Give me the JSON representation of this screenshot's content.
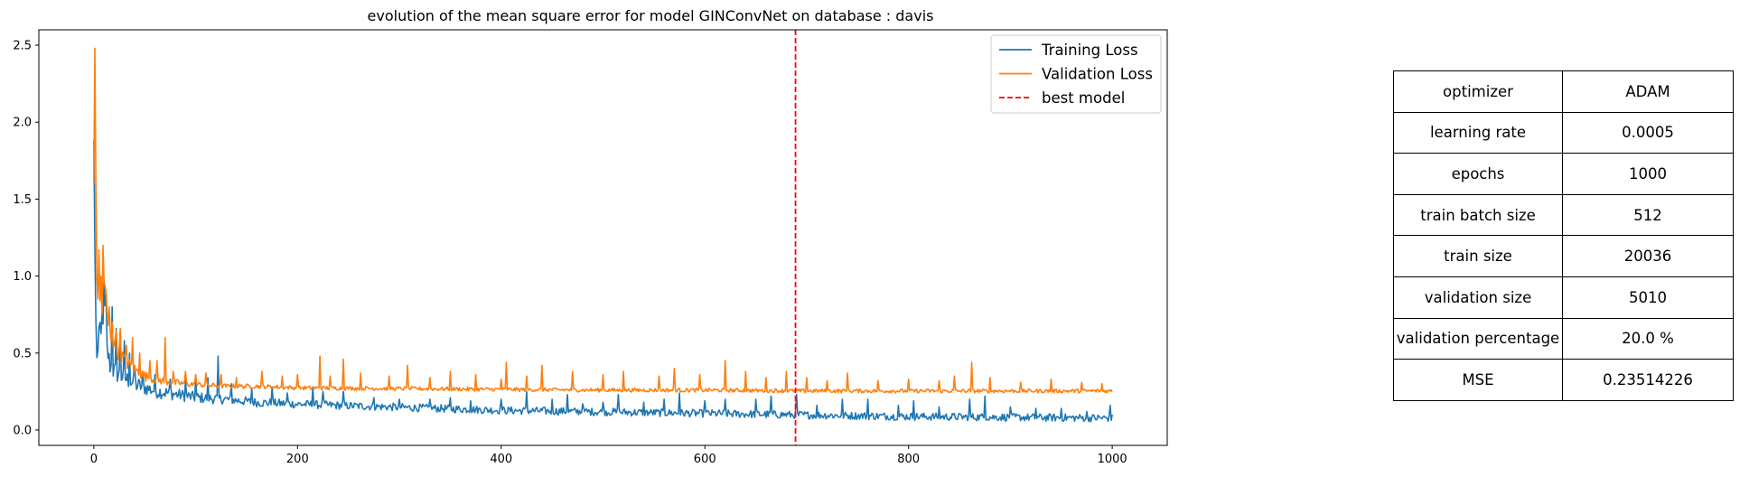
{
  "chart_data": {
    "type": "line",
    "title": "evolution of the mean square error for model GINConvNet on database : davis",
    "xlabel": "",
    "ylabel": "",
    "xlim": [
      -54,
      1054
    ],
    "ylim": [
      -0.1,
      2.6
    ],
    "xticks": [
      0,
      200,
      400,
      600,
      800,
      1000
    ],
    "yticks": [
      0.0,
      0.5,
      1.0,
      1.5,
      2.0,
      2.5
    ],
    "grid": false,
    "legend_position": "top-right",
    "series": [
      {
        "name": "Training Loss",
        "color": "#1f77b4",
        "keypoints": [
          [
            0,
            1.88
          ],
          [
            1,
            1.2
          ],
          [
            2,
            0.72
          ],
          [
            3,
            0.42
          ],
          [
            5,
            0.62
          ],
          [
            8,
            0.55
          ],
          [
            10,
            0.88
          ],
          [
            13,
            0.5
          ],
          [
            16,
            0.4
          ],
          [
            20,
            0.36
          ],
          [
            25,
            0.34
          ],
          [
            30,
            0.32
          ],
          [
            40,
            0.28
          ],
          [
            50,
            0.26
          ],
          [
            60,
            0.24
          ],
          [
            80,
            0.22
          ],
          [
            100,
            0.2
          ],
          [
            130,
            0.19
          ],
          [
            160,
            0.17
          ],
          [
            200,
            0.16
          ],
          [
            250,
            0.15
          ],
          [
            300,
            0.14
          ],
          [
            400,
            0.12
          ],
          [
            500,
            0.11
          ],
          [
            600,
            0.1
          ],
          [
            700,
            0.09
          ],
          [
            800,
            0.08
          ],
          [
            900,
            0.075
          ],
          [
            1000,
            0.07
          ]
        ],
        "spikes": [
          [
            8,
            0.75
          ],
          [
            12,
            0.88
          ],
          [
            18,
            0.8
          ],
          [
            22,
            0.66
          ],
          [
            26,
            0.65
          ],
          [
            30,
            0.58
          ],
          [
            35,
            0.5
          ],
          [
            40,
            0.42
          ],
          [
            48,
            0.38
          ],
          [
            60,
            0.36
          ],
          [
            75,
            0.33
          ],
          [
            90,
            0.33
          ],
          [
            100,
            0.35
          ],
          [
            112,
            0.34
          ],
          [
            122,
            0.48
          ],
          [
            135,
            0.3
          ],
          [
            155,
            0.27
          ],
          [
            175,
            0.28
          ],
          [
            190,
            0.24
          ],
          [
            215,
            0.28
          ],
          [
            225,
            0.25
          ],
          [
            245,
            0.25
          ],
          [
            275,
            0.21
          ],
          [
            300,
            0.2
          ],
          [
            330,
            0.2
          ],
          [
            350,
            0.21
          ],
          [
            370,
            0.19
          ],
          [
            400,
            0.2
          ],
          [
            425,
            0.25
          ],
          [
            450,
            0.2
          ],
          [
            465,
            0.23
          ],
          [
            480,
            0.17
          ],
          [
            500,
            0.18
          ],
          [
            515,
            0.23
          ],
          [
            540,
            0.18
          ],
          [
            560,
            0.2
          ],
          [
            575,
            0.24
          ],
          [
            600,
            0.19
          ],
          [
            620,
            0.2
          ],
          [
            650,
            0.2
          ],
          [
            665,
            0.22
          ],
          [
            690,
            0.23
          ],
          [
            710,
            0.16
          ],
          [
            735,
            0.2
          ],
          [
            760,
            0.2
          ],
          [
            790,
            0.16
          ],
          [
            805,
            0.19
          ],
          [
            830,
            0.15
          ],
          [
            860,
            0.2
          ],
          [
            875,
            0.22
          ],
          [
            900,
            0.15
          ],
          [
            925,
            0.14
          ],
          [
            950,
            0.14
          ],
          [
            975,
            0.12
          ],
          [
            998,
            0.16
          ]
        ]
      },
      {
        "name": "Validation Loss",
        "color": "#ff7f0e",
        "keypoints": [
          [
            0,
            1.6
          ],
          [
            1,
            2.48
          ],
          [
            2,
            1.6
          ],
          [
            3,
            0.95
          ],
          [
            5,
            0.8
          ],
          [
            8,
            0.72
          ],
          [
            10,
            0.95
          ],
          [
            13,
            0.7
          ],
          [
            16,
            0.6
          ],
          [
            20,
            0.55
          ],
          [
            25,
            0.48
          ],
          [
            30,
            0.44
          ],
          [
            40,
            0.38
          ],
          [
            50,
            0.34
          ],
          [
            60,
            0.32
          ],
          [
            80,
            0.3
          ],
          [
            100,
            0.29
          ],
          [
            130,
            0.28
          ],
          [
            160,
            0.28
          ],
          [
            200,
            0.27
          ],
          [
            300,
            0.265
          ],
          [
            400,
            0.26
          ],
          [
            500,
            0.255
          ],
          [
            600,
            0.255
          ],
          [
            700,
            0.25
          ],
          [
            800,
            0.25
          ],
          [
            900,
            0.25
          ],
          [
            1000,
            0.25
          ]
        ],
        "spikes": [
          [
            5,
            1.17
          ],
          [
            7,
            1.0
          ],
          [
            9,
            1.2
          ],
          [
            12,
            0.9
          ],
          [
            15,
            0.8
          ],
          [
            18,
            0.7
          ],
          [
            22,
            0.65
          ],
          [
            26,
            0.66
          ],
          [
            32,
            0.55
          ],
          [
            38,
            0.6
          ],
          [
            45,
            0.5
          ],
          [
            55,
            0.45
          ],
          [
            62,
            0.45
          ],
          [
            70,
            0.6
          ],
          [
            78,
            0.38
          ],
          [
            90,
            0.38
          ],
          [
            100,
            0.36
          ],
          [
            110,
            0.37
          ],
          [
            125,
            0.36
          ],
          [
            140,
            0.34
          ],
          [
            165,
            0.38
          ],
          [
            185,
            0.35
          ],
          [
            200,
            0.36
          ],
          [
            222,
            0.48
          ],
          [
            232,
            0.35
          ],
          [
            245,
            0.46
          ],
          [
            262,
            0.37
          ],
          [
            290,
            0.35
          ],
          [
            308,
            0.42
          ],
          [
            330,
            0.34
          ],
          [
            350,
            0.38
          ],
          [
            375,
            0.36
          ],
          [
            400,
            0.33
          ],
          [
            405,
            0.44
          ],
          [
            425,
            0.35
          ],
          [
            440,
            0.42
          ],
          [
            470,
            0.38
          ],
          [
            500,
            0.36
          ],
          [
            520,
            0.38
          ],
          [
            555,
            0.35
          ],
          [
            570,
            0.4
          ],
          [
            595,
            0.36
          ],
          [
            620,
            0.45
          ],
          [
            640,
            0.38
          ],
          [
            660,
            0.34
          ],
          [
            680,
            0.38
          ],
          [
            700,
            0.34
          ],
          [
            720,
            0.32
          ],
          [
            740,
            0.37
          ],
          [
            770,
            0.32
          ],
          [
            800,
            0.33
          ],
          [
            830,
            0.32
          ],
          [
            845,
            0.35
          ],
          [
            862,
            0.44
          ],
          [
            880,
            0.34
          ],
          [
            910,
            0.31
          ],
          [
            940,
            0.33
          ],
          [
            970,
            0.31
          ],
          [
            990,
            0.3
          ]
        ]
      }
    ],
    "vlines": [
      {
        "name": "best model",
        "x": 689,
        "color": "#ff0000",
        "style": "dashed"
      }
    ]
  },
  "table": {
    "rows": [
      {
        "name": "optimizer",
        "value": "ADAM"
      },
      {
        "name": "learning rate",
        "value": "0.0005"
      },
      {
        "name": "epochs",
        "value": "1000"
      },
      {
        "name": "train batch size",
        "value": "512"
      },
      {
        "name": "train size",
        "value": "20036"
      },
      {
        "name": "validation size",
        "value": "5010"
      },
      {
        "name": "validation percentage",
        "value": "20.0 %"
      },
      {
        "name": "MSE",
        "value": "0.23514226"
      }
    ]
  }
}
